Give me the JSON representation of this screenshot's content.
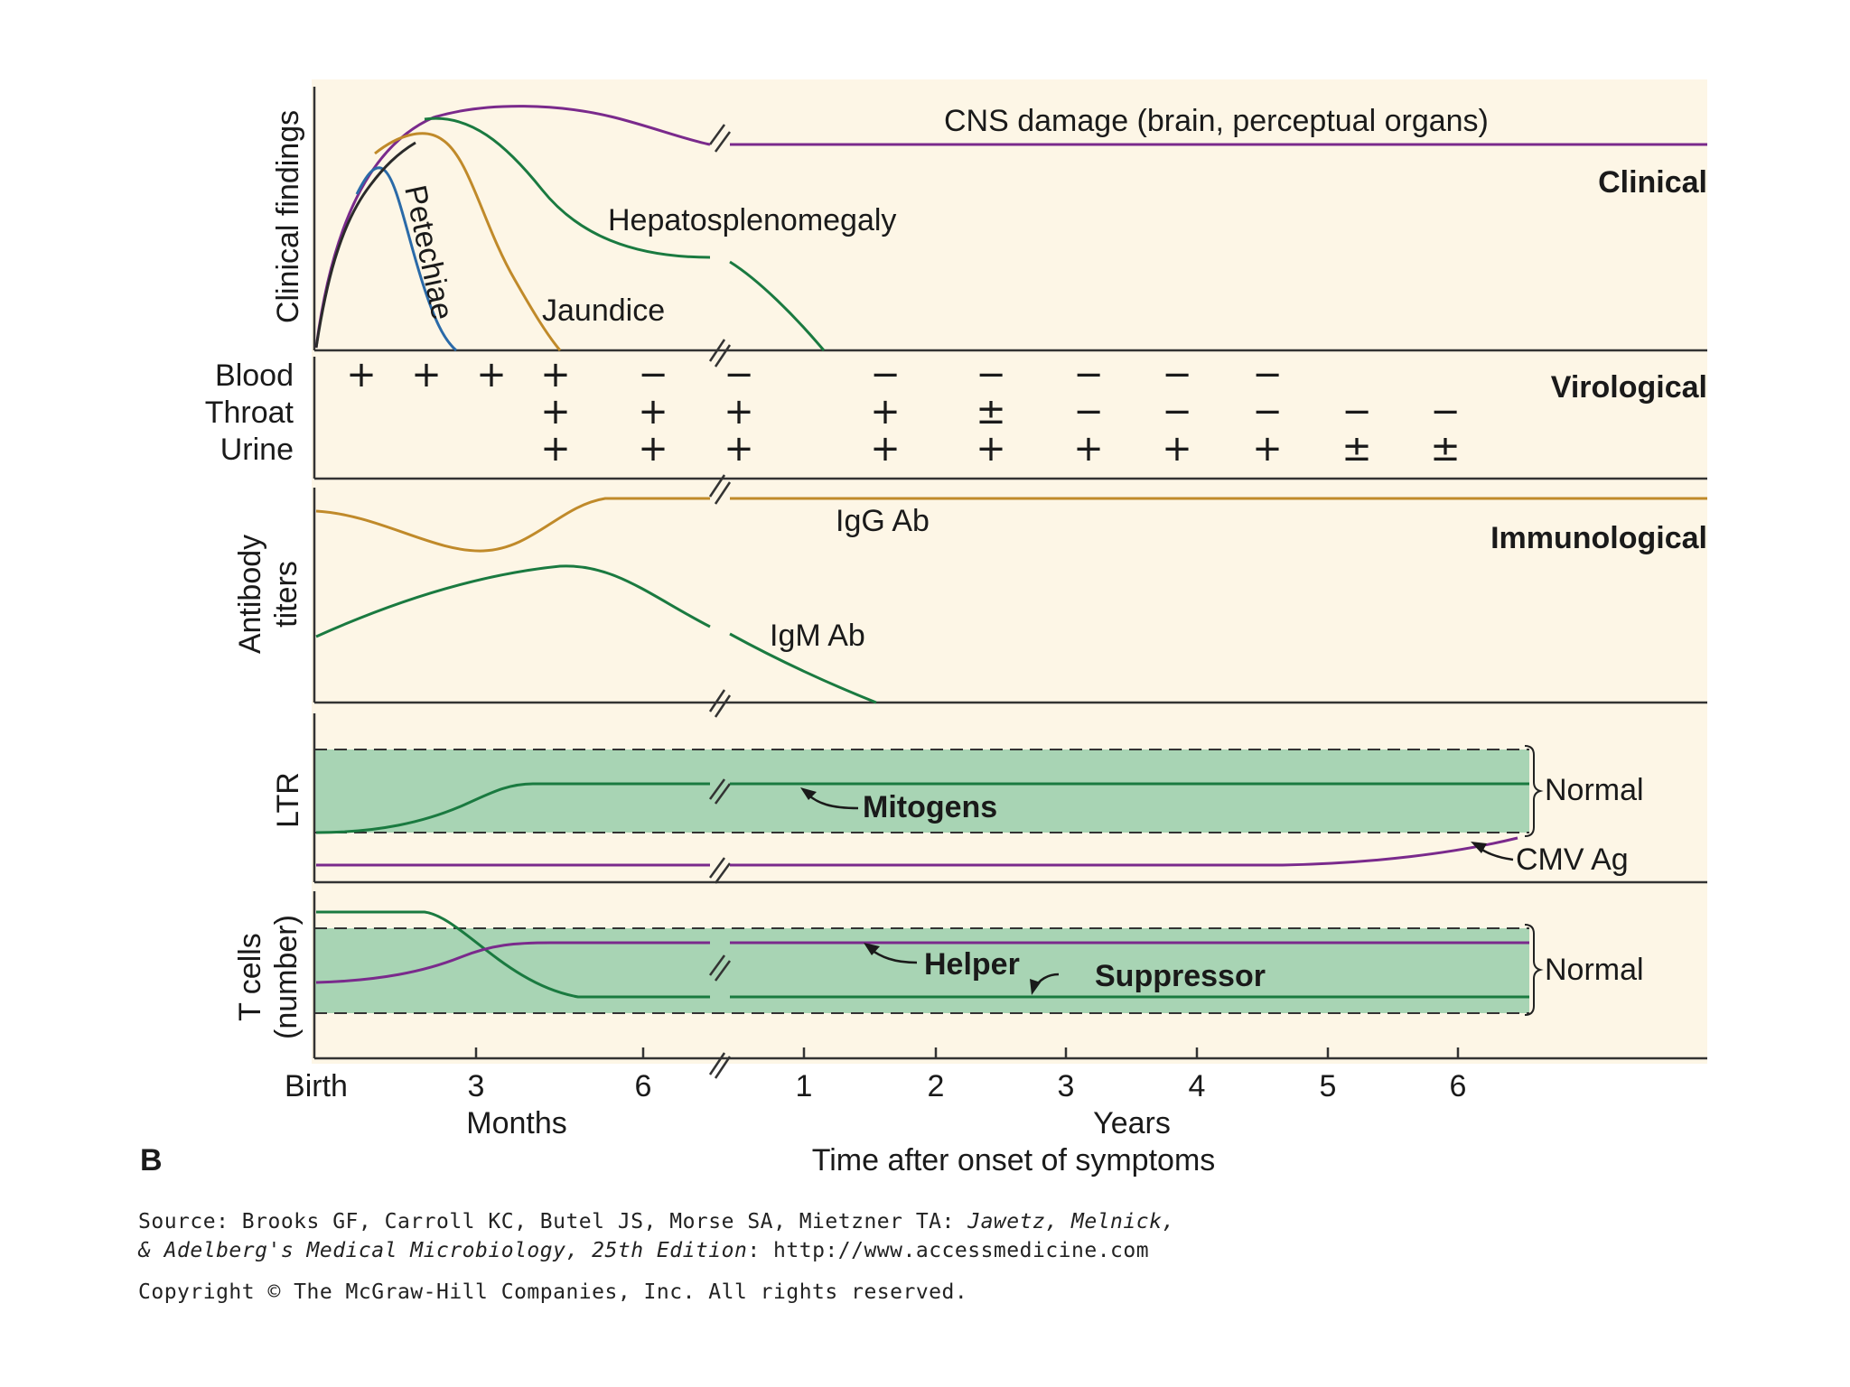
{
  "chart_data": {
    "type": "line",
    "panel_label": "B",
    "x_axis": {
      "title": "Time after onset of symptoms",
      "months_label": "Months",
      "years_label": "Years",
      "ticks": [
        "Birth",
        "3",
        "6",
        "1",
        "2",
        "3",
        "4",
        "5",
        "6"
      ]
    },
    "clinical": {
      "section": "Clinical",
      "ylabel": "Clinical findings",
      "series": [
        {
          "name": "CNS damage (brain, perceptual organs)",
          "color": "#7a2a8c"
        },
        {
          "name": "Hepatosplenomegaly",
          "color": "#1a7a40"
        },
        {
          "name": "Jaundice",
          "color": "#c08a2a"
        },
        {
          "name": "Petechiae",
          "color": "#2a6aa8"
        }
      ]
    },
    "virological": {
      "section": "Virological",
      "rows": [
        {
          "label": "Blood",
          "values": [
            "+",
            "+",
            "+",
            "+",
            "−",
            "−",
            "−",
            "−",
            "−",
            "−",
            "−",
            "",
            ""
          ]
        },
        {
          "label": "Throat",
          "values": [
            "",
            "",
            "",
            "+",
            "+",
            "+",
            "+",
            "±",
            "−",
            "−",
            "−",
            "−",
            "−"
          ]
        },
        {
          "label": "Urine",
          "values": [
            "",
            "",
            "",
            "+",
            "+",
            "+",
            "+",
            "+",
            "+",
            "+",
            "+",
            "±",
            "±"
          ]
        }
      ]
    },
    "immunological": {
      "section": "Immunological",
      "ylabel_line1": "Antibody",
      "ylabel_line2": "titers",
      "series": [
        {
          "name": "IgG Ab",
          "color": "#c08a2a"
        },
        {
          "name": "IgM Ab",
          "color": "#1a7a40"
        }
      ]
    },
    "ltr": {
      "ylabel": "LTR",
      "band_label": "Normal",
      "band_color": "#a8d4b4",
      "series": [
        {
          "name": "Mitogens",
          "color": "#1a7a40"
        },
        {
          "name": "CMV Ag",
          "color": "#7a2a8c"
        }
      ]
    },
    "tcells": {
      "ylabel_line1": "T cells",
      "ylabel_line2": "(number)",
      "band_label": "Normal",
      "series": [
        {
          "name": "Helper",
          "color": "#7a2a8c"
        },
        {
          "name": "Suppressor",
          "color": "#1a7a40"
        }
      ]
    }
  },
  "source": {
    "prefix": "Source: Brooks GF, Carroll KC, Butel JS, Morse SA, Mietzner TA: ",
    "title_part1": "Jawetz, Melnick,",
    "title_part2": "& Adelberg's Medical Microbiology, 25th Edition",
    "suffix": ": http://www.accessmedicine.com",
    "copyright": "Copyright © The McGraw-Hill Companies, Inc. All rights reserved."
  }
}
